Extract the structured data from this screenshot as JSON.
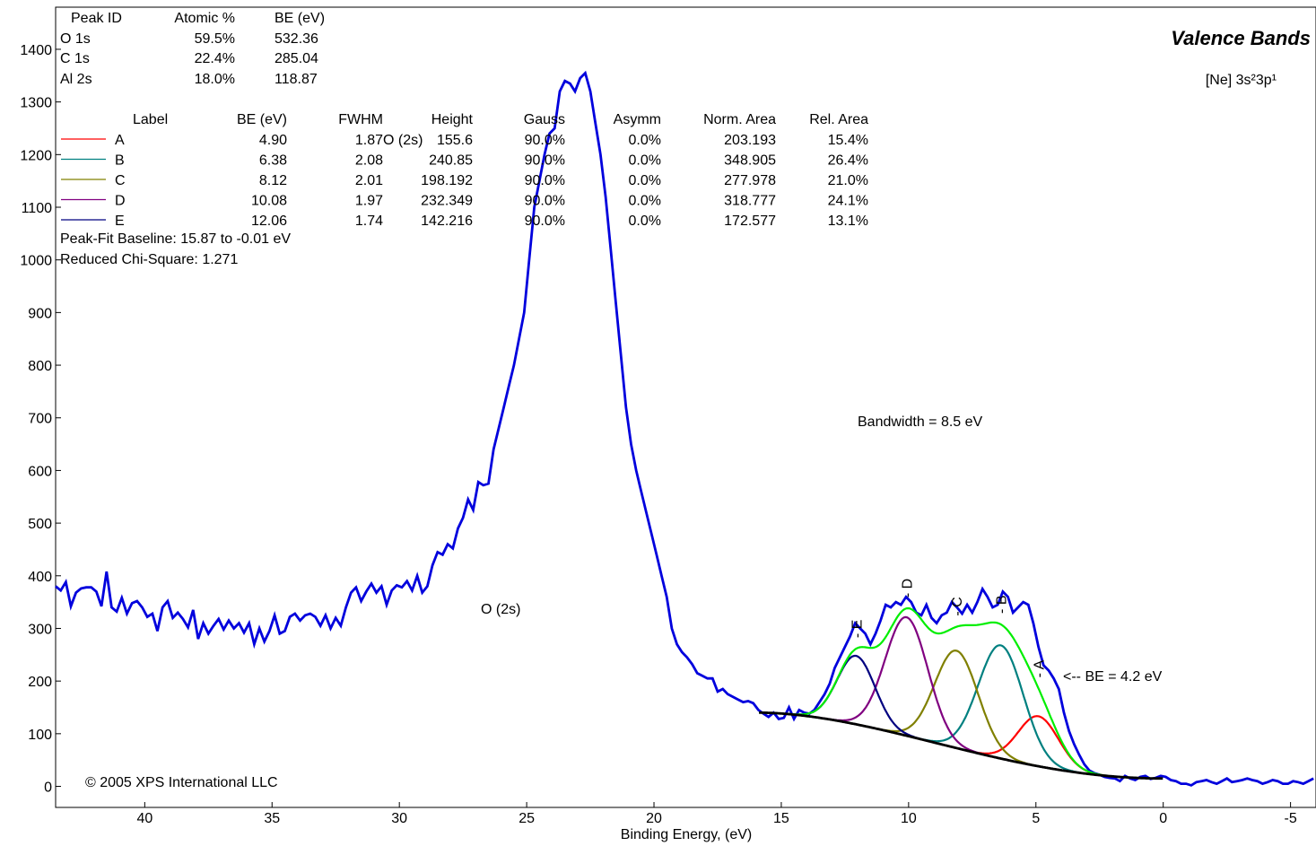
{
  "summary_table": {
    "headers": [
      "Peak ID",
      "Atomic %",
      "BE (eV)"
    ],
    "rows": [
      [
        "O 1s",
        "59.5%",
        "532.36"
      ],
      [
        "C 1s",
        "22.4%",
        "285.04"
      ],
      [
        "Al 2s",
        "18.0%",
        "118.87"
      ]
    ]
  },
  "fit_table": {
    "headers": [
      "Label",
      "BE (eV)",
      "FWHM",
      "Height",
      "Gauss",
      "Asymm",
      "Norm. Area",
      "Rel. Area"
    ],
    "rows": [
      {
        "label": "A",
        "be": "4.90",
        "fwhm": "1.87",
        "height": "155.6",
        "gauss": "90.0%",
        "asymm": "0.0%",
        "norm_area": "203.193",
        "rel_area": "15.4%",
        "color": "#ff0000"
      },
      {
        "label": "B",
        "be": "6.38",
        "fwhm": "2.08",
        "height": "240.85",
        "gauss": "90.0%",
        "asymm": "0.0%",
        "norm_area": "348.905",
        "rel_area": "26.4%",
        "color": "#008080"
      },
      {
        "label": "C",
        "be": "8.12",
        "fwhm": "2.01",
        "height": "198.192",
        "gauss": "90.0%",
        "asymm": "0.0%",
        "norm_area": "277.978",
        "rel_area": "21.0%",
        "color": "#808000"
      },
      {
        "label": "D",
        "be": "10.08",
        "fwhm": "1.97",
        "height": "232.349",
        "gauss": "90.0%",
        "asymm": "0.0%",
        "norm_area": "318.777",
        "rel_area": "24.1%",
        "color": "#800080"
      },
      {
        "label": "E",
        "be": "12.06",
        "fwhm": "1.74",
        "height": "142.216",
        "gauss": "90.0%",
        "asymm": "0.0%",
        "norm_area": "172.577",
        "rel_area": "13.1%",
        "color": "#000080"
      }
    ],
    "overlap_text": "O (2s)",
    "baseline_text": "Peak-Fit Baseline:  15.87 to  -0.01 eV",
    "chisq_text": "Reduced Chi-Square: 1.271"
  },
  "title": "Valence Bands",
  "subtitle": "[Ne] 3s²3p¹",
  "annotations": {
    "bandwidth": "Bandwidth  =  8.5  eV",
    "be_marker": "<--   BE  =  4.2  eV",
    "o2s": "O (2s)",
    "copyright": "© 2005 XPS International LLC"
  },
  "chart_data": {
    "type": "line",
    "xlabel": "Binding Energy, (eV)",
    "ylabel": "",
    "xlim": [
      43.5,
      -6
    ],
    "ylim": [
      -40,
      1480
    ],
    "x_reversed": true,
    "x_ticks": [
      40,
      35,
      30,
      25,
      20,
      15,
      10,
      5,
      0,
      -5
    ],
    "y_ticks": [
      0,
      100,
      200,
      300,
      400,
      500,
      600,
      700,
      800,
      900,
      1000,
      1100,
      1200,
      1300,
      1400
    ],
    "baseline": {
      "start_be": 15.87,
      "end_be": -0.01,
      "start_y": 140,
      "end_y": 15
    },
    "series": [
      {
        "color": "#0000dd",
        "points": [
          [
            43.5,
            380
          ],
          [
            43.3,
            372
          ],
          [
            43.1,
            388
          ],
          [
            42.9,
            342
          ],
          [
            42.7,
            368
          ],
          [
            42.5,
            376
          ],
          [
            42.3,
            378
          ],
          [
            42.1,
            378
          ],
          [
            41.9,
            370
          ],
          [
            41.7,
            342
          ],
          [
            41.5,
            408
          ],
          [
            41.3,
            340
          ],
          [
            41.1,
            332
          ],
          [
            40.9,
            358
          ],
          [
            40.7,
            328
          ],
          [
            40.5,
            348
          ],
          [
            40.3,
            352
          ],
          [
            40.1,
            340
          ],
          [
            39.9,
            322
          ],
          [
            39.7,
            328
          ],
          [
            39.5,
            295
          ],
          [
            39.3,
            340
          ],
          [
            39.1,
            352
          ],
          [
            38.9,
            320
          ],
          [
            38.7,
            330
          ],
          [
            38.5,
            318
          ],
          [
            38.3,
            302
          ],
          [
            38.1,
            335
          ],
          [
            37.9,
            280
          ],
          [
            37.7,
            310
          ],
          [
            37.5,
            290
          ],
          [
            37.3,
            305
          ],
          [
            37.1,
            318
          ],
          [
            36.9,
            298
          ],
          [
            36.7,
            315
          ],
          [
            36.5,
            300
          ],
          [
            36.3,
            310
          ],
          [
            36.1,
            292
          ],
          [
            35.9,
            310
          ],
          [
            35.7,
            270
          ],
          [
            35.5,
            300
          ],
          [
            35.3,
            275
          ],
          [
            35.1,
            295
          ],
          [
            34.9,
            325
          ],
          [
            34.7,
            290
          ],
          [
            34.5,
            295
          ],
          [
            34.3,
            322
          ],
          [
            34.1,
            328
          ],
          [
            33.9,
            315
          ],
          [
            33.7,
            325
          ],
          [
            33.5,
            328
          ],
          [
            33.3,
            322
          ],
          [
            33.1,
            305
          ],
          [
            32.9,
            325
          ],
          [
            32.7,
            300
          ],
          [
            32.5,
            320
          ],
          [
            32.3,
            305
          ],
          [
            32.1,
            340
          ],
          [
            31.9,
            368
          ],
          [
            31.7,
            378
          ],
          [
            31.5,
            352
          ],
          [
            31.3,
            370
          ],
          [
            31.1,
            385
          ],
          [
            30.9,
            368
          ],
          [
            30.7,
            380
          ],
          [
            30.5,
            345
          ],
          [
            30.3,
            372
          ],
          [
            30.1,
            382
          ],
          [
            29.9,
            378
          ],
          [
            29.7,
            390
          ],
          [
            29.5,
            372
          ],
          [
            29.3,
            400
          ],
          [
            29.1,
            368
          ],
          [
            28.9,
            380
          ],
          [
            28.7,
            420
          ],
          [
            28.5,
            445
          ],
          [
            28.3,
            440
          ],
          [
            28.1,
            460
          ],
          [
            27.9,
            452
          ],
          [
            27.7,
            490
          ],
          [
            27.5,
            510
          ],
          [
            27.3,
            545
          ],
          [
            27.1,
            525
          ],
          [
            26.9,
            578
          ],
          [
            26.7,
            572
          ],
          [
            26.5,
            575
          ],
          [
            26.3,
            640
          ],
          [
            26.1,
            680
          ],
          [
            25.9,
            720
          ],
          [
            25.7,
            760
          ],
          [
            25.5,
            800
          ],
          [
            25.3,
            850
          ],
          [
            25.1,
            900
          ],
          [
            24.9,
            1000
          ],
          [
            24.7,
            1100
          ],
          [
            24.5,
            1150
          ],
          [
            24.3,
            1200
          ],
          [
            24.1,
            1240
          ],
          [
            23.9,
            1250
          ],
          [
            23.7,
            1320
          ],
          [
            23.5,
            1340
          ],
          [
            23.3,
            1335
          ],
          [
            23.1,
            1320
          ],
          [
            22.9,
            1345
          ],
          [
            22.7,
            1355
          ],
          [
            22.5,
            1320
          ],
          [
            22.3,
            1260
          ],
          [
            22.1,
            1200
          ],
          [
            21.9,
            1120
          ],
          [
            21.7,
            1020
          ],
          [
            21.5,
            920
          ],
          [
            21.3,
            820
          ],
          [
            21.1,
            720
          ],
          [
            20.9,
            650
          ],
          [
            20.7,
            600
          ],
          [
            20.5,
            560
          ],
          [
            20.3,
            520
          ],
          [
            20.1,
            480
          ],
          [
            19.9,
            440
          ],
          [
            19.7,
            400
          ],
          [
            19.5,
            360
          ],
          [
            19.3,
            300
          ],
          [
            19.1,
            270
          ],
          [
            18.9,
            255
          ],
          [
            18.7,
            245
          ],
          [
            18.5,
            232
          ],
          [
            18.3,
            215
          ],
          [
            18.1,
            210
          ],
          [
            17.9,
            205
          ],
          [
            17.7,
            205
          ],
          [
            17.5,
            180
          ],
          [
            17.3,
            185
          ],
          [
            17.1,
            175
          ],
          [
            16.9,
            170
          ],
          [
            16.7,
            165
          ],
          [
            16.5,
            160
          ],
          [
            16.3,
            162
          ],
          [
            16.1,
            158
          ],
          [
            15.9,
            145
          ],
          [
            15.7,
            138
          ],
          [
            15.5,
            132
          ],
          [
            15.3,
            140
          ],
          [
            15.1,
            128
          ],
          [
            14.9,
            130
          ],
          [
            14.7,
            150
          ],
          [
            14.5,
            128
          ],
          [
            14.3,
            145
          ],
          [
            14.1,
            140
          ],
          [
            13.9,
            138
          ],
          [
            13.7,
            145
          ],
          [
            13.5,
            160
          ],
          [
            13.3,
            175
          ],
          [
            13.1,
            195
          ],
          [
            12.9,
            225
          ],
          [
            12.7,
            245
          ],
          [
            12.5,
            265
          ],
          [
            12.3,
            285
          ],
          [
            12.1,
            310
          ],
          [
            11.9,
            300
          ],
          [
            11.7,
            290
          ],
          [
            11.5,
            270
          ],
          [
            11.3,
            290
          ],
          [
            11.1,
            315
          ],
          [
            10.9,
            345
          ],
          [
            10.7,
            340
          ],
          [
            10.5,
            350
          ],
          [
            10.3,
            345
          ],
          [
            10.1,
            360
          ],
          [
            9.9,
            350
          ],
          [
            9.7,
            330
          ],
          [
            9.5,
            325
          ],
          [
            9.3,
            345
          ],
          [
            9.1,
            320
          ],
          [
            8.9,
            310
          ],
          [
            8.7,
            325
          ],
          [
            8.5,
            330
          ],
          [
            8.3,
            350
          ],
          [
            8.1,
            340
          ],
          [
            7.9,
            328
          ],
          [
            7.7,
            345
          ],
          [
            7.5,
            330
          ],
          [
            7.3,
            350
          ],
          [
            7.1,
            375
          ],
          [
            6.9,
            360
          ],
          [
            6.7,
            340
          ],
          [
            6.5,
            345
          ],
          [
            6.3,
            370
          ],
          [
            6.1,
            360
          ],
          [
            5.9,
            330
          ],
          [
            5.7,
            340
          ],
          [
            5.5,
            350
          ],
          [
            5.3,
            345
          ],
          [
            5.1,
            310
          ],
          [
            4.9,
            265
          ],
          [
            4.7,
            230
          ],
          [
            4.5,
            220
          ],
          [
            4.3,
            205
          ],
          [
            4.1,
            185
          ],
          [
            3.9,
            140
          ],
          [
            3.7,
            105
          ],
          [
            3.5,
            80
          ],
          [
            3.3,
            60
          ],
          [
            3.1,
            42
          ],
          [
            2.9,
            30
          ],
          [
            2.7,
            25
          ],
          [
            2.5,
            22
          ],
          [
            2.3,
            18
          ],
          [
            2.1,
            16
          ],
          [
            1.9,
            15
          ],
          [
            1.7,
            10
          ],
          [
            1.5,
            20
          ],
          [
            1.3,
            15
          ],
          [
            1.1,
            12
          ],
          [
            0.9,
            18
          ],
          [
            0.7,
            20
          ],
          [
            0.5,
            14
          ],
          [
            0.3,
            16
          ],
          [
            0.1,
            20
          ],
          [
            -0.1,
            18
          ],
          [
            -0.3,
            12
          ],
          [
            -0.5,
            10
          ],
          [
            -0.7,
            5
          ],
          [
            -0.9,
            5
          ],
          [
            -1.1,
            2
          ],
          [
            -1.3,
            8
          ],
          [
            -1.5,
            10
          ],
          [
            -1.7,
            12
          ],
          [
            -1.9,
            8
          ],
          [
            -2.1,
            5
          ],
          [
            -2.3,
            10
          ],
          [
            -2.5,
            15
          ],
          [
            -2.7,
            8
          ],
          [
            -2.9,
            10
          ],
          [
            -3.1,
            12
          ],
          [
            -3.3,
            15
          ],
          [
            -3.5,
            12
          ],
          [
            -3.7,
            10
          ],
          [
            -3.9,
            5
          ],
          [
            -4.1,
            8
          ],
          [
            -4.3,
            12
          ],
          [
            -4.5,
            10
          ],
          [
            -4.7,
            5
          ],
          [
            -4.9,
            5
          ],
          [
            -5.1,
            10
          ],
          [
            -5.3,
            8
          ],
          [
            -5.5,
            5
          ],
          [
            -5.7,
            10
          ],
          [
            -5.9,
            15
          ]
        ]
      }
    ]
  }
}
